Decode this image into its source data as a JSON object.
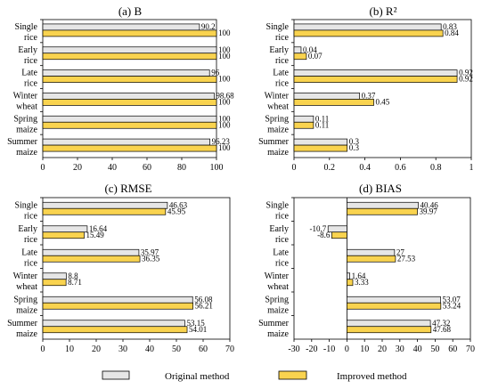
{
  "series_names": [
    "Original method",
    "Improved method"
  ],
  "colors": {
    "original": "#e6e6e6",
    "improved": "#f9d34f",
    "stroke": "#000000"
  },
  "chart_data": [
    {
      "type": "bar",
      "orientation": "horizontal",
      "title": "(a) B",
      "categories": [
        "Single\nrice",
        "Early\nrice",
        "Late\nrice",
        "Winter\nwheat",
        "Spring\nmaize",
        "Summer\nmaize"
      ],
      "xlim": [
        0,
        100
      ],
      "xticks": [
        "0",
        "20",
        "40",
        "60",
        "80",
        "100"
      ],
      "series": [
        {
          "name": "Original method",
          "values": [
            90.2,
            100,
            96,
            98.68,
            100,
            96.23
          ],
          "labels": [
            "90.2",
            "100",
            "96",
            "98.68",
            "100",
            "96.23"
          ]
        },
        {
          "name": "Improved method",
          "values": [
            100,
            100,
            100,
            100,
            100,
            100
          ],
          "labels": [
            "100",
            "100",
            "100",
            "100",
            "100",
            "100"
          ]
        }
      ],
      "legend": "bottom"
    },
    {
      "type": "bar",
      "orientation": "horizontal",
      "title": "(b) R²",
      "categories": [
        "Single\nrice",
        "Early\nrice",
        "Late\nrice",
        "Winter\nwheat",
        "Spring\nmaize",
        "Summer\nmaize"
      ],
      "xlim": [
        0,
        1
      ],
      "xticks": [
        "0",
        "0.2",
        "0.4",
        "0.6",
        "0.8",
        "1"
      ],
      "series": [
        {
          "name": "Original method",
          "values": [
            0.83,
            0.04,
            0.92,
            0.37,
            0.11,
            0.3
          ],
          "labels": [
            "0.83",
            "0.04",
            "0.92",
            "0.37",
            "0.11",
            "0.3"
          ]
        },
        {
          "name": "Improved method",
          "values": [
            0.84,
            0.07,
            0.92,
            0.45,
            0.11,
            0.3
          ],
          "labels": [
            "0.84",
            "0.07",
            "0.92",
            "0.45",
            "0.11",
            "0.3"
          ]
        }
      ],
      "legend": "bottom"
    },
    {
      "type": "bar",
      "orientation": "horizontal",
      "title": "(c) RMSE",
      "categories": [
        "Single\nrice",
        "Early\nrice",
        "Late\nrice",
        "Winter\nwheat",
        "Spring\nmaize",
        "Summer\nmaize"
      ],
      "xlim": [
        0,
        70
      ],
      "xticks": [
        "0",
        "10",
        "20",
        "30",
        "40",
        "50",
        "60",
        "70"
      ],
      "series": [
        {
          "name": "Original method",
          "values": [
            46.63,
            16.64,
            35.97,
            8.8,
            56.08,
            53.15
          ],
          "labels": [
            "46.63",
            "16.64",
            "35.97",
            "8.8",
            "56.08",
            "53.15"
          ]
        },
        {
          "name": "Improved method",
          "values": [
            45.95,
            15.49,
            36.35,
            8.71,
            56.21,
            54.01
          ],
          "labels": [
            "45.95",
            "15.49",
            "36.35",
            "8.71",
            "56.21",
            "54.01"
          ]
        }
      ],
      "legend": "bottom"
    },
    {
      "type": "bar",
      "orientation": "horizontal",
      "title": "(d) BIAS",
      "categories": [
        "Single\nrice",
        "Early\nrice",
        "Late\nrice",
        "Winter\nwheat",
        "Spring\nmaize",
        "Summer\nmaize"
      ],
      "xlim": [
        -30,
        70
      ],
      "xticks": [
        "-30",
        "-20",
        "-10",
        "0",
        "10",
        "20",
        "30",
        "40",
        "50",
        "60",
        "70"
      ],
      "series": [
        {
          "name": "Original method",
          "values": [
            40.46,
            -10.7,
            27,
            1.64,
            53.07,
            47.32
          ],
          "labels": [
            "40.46",
            "-10.7",
            "27",
            "1.64",
            "53.07",
            "47.32"
          ]
        },
        {
          "name": "Improved method",
          "values": [
            39.97,
            -8.6,
            27.53,
            3.33,
            53.24,
            47.68
          ],
          "labels": [
            "39.97",
            "-8.6",
            "27.53",
            "3.33",
            "53.24",
            "47.68"
          ]
        }
      ],
      "legend": "bottom"
    }
  ]
}
